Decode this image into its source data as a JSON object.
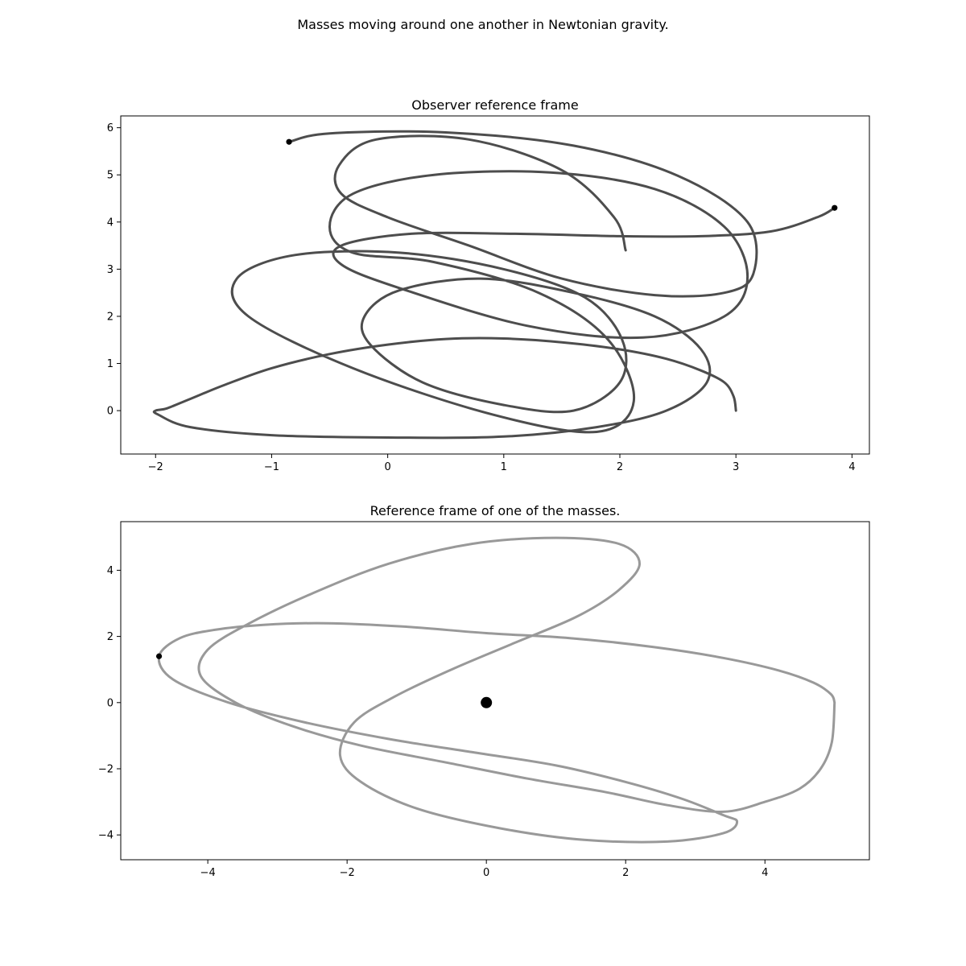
{
  "suptitle": "Masses moving around one another in Newtonian gravity.",
  "colors": {
    "observer_track": "#4d4d4d",
    "relative_track": "#999999",
    "marker": "#000000",
    "axes": "#000000"
  },
  "chart_data": [
    {
      "type": "line",
      "title": "Observer reference frame",
      "xlabel": "",
      "ylabel": "",
      "xlim": [
        -2.3,
        4.15
      ],
      "ylim": [
        -0.92,
        6.25
      ],
      "xticks": [
        -2,
        -1,
        0,
        1,
        2,
        3,
        4
      ],
      "yticks": [
        0,
        1,
        2,
        3,
        4,
        5,
        6
      ],
      "grid": false,
      "series": [
        {
          "color": "#4d4d4d",
          "x": [
            3.0,
            2.98,
            2.9,
            2.7,
            2.4,
            2.0,
            1.5,
            1.0,
            0.5,
            0.0,
            -0.5,
            -1.0,
            -1.4,
            -1.7,
            -1.9,
            -2.0,
            -1.98,
            -1.7,
            -1.0,
            0.0,
            1.0,
            1.8,
            2.4,
            2.75,
            2.7,
            2.3,
            1.6,
            0.8,
            0.1,
            -0.2,
            -0.15,
            0.3,
            1.0,
            1.6,
            2.0,
            2.02,
            1.7,
            1.0,
            0.1,
            -0.8,
            -1.3,
            -1.2,
            -0.3,
            0.9,
            1.8,
            2.12,
            1.9,
            1.3,
            0.4,
            -0.3,
            -0.5,
            -0.3,
            0.4,
            1.4,
            2.3,
            2.9,
            3.1,
            2.9,
            2.2,
            1.2,
            0.1,
            -0.4,
            -0.4,
            0.2,
            1.1,
            2.0,
            2.7,
            3.3,
            3.7,
            3.85
          ],
          "y": [
            0.0,
            0.3,
            0.6,
            0.85,
            1.1,
            1.3,
            1.45,
            1.53,
            1.52,
            1.4,
            1.2,
            0.9,
            0.55,
            0.25,
            0.05,
            0.0,
            -0.08,
            -0.35,
            -0.52,
            -0.57,
            -0.55,
            -0.35,
            0.0,
            0.6,
            1.3,
            2.0,
            2.5,
            2.8,
            2.55,
            2.0,
            1.4,
            0.6,
            0.12,
            0.0,
            0.6,
            1.5,
            2.4,
            3.0,
            3.35,
            3.3,
            2.8,
            2.0,
            0.9,
            -0.08,
            -0.45,
            0.2,
            1.5,
            2.5,
            3.15,
            3.35,
            3.9,
            4.6,
            5.0,
            5.05,
            4.7,
            3.9,
            2.85,
            2.0,
            1.55,
            1.8,
            2.6,
            3.1,
            3.5,
            3.75,
            3.75,
            3.7,
            3.7,
            3.8,
            4.1,
            4.3
          ]
        },
        {
          "color": "#4d4d4d",
          "x": [
            -0.85,
            -0.5,
            0.5,
            1.6,
            2.5,
            3.1,
            3.15,
            2.9,
            2.3,
            1.5,
            0.7,
            0.0,
            -0.4,
            -0.42,
            -0.1,
            0.7,
            1.5,
            1.95,
            2.05
          ],
          "y": [
            5.7,
            5.88,
            5.9,
            5.62,
            4.98,
            4.0,
            2.9,
            2.5,
            2.45,
            2.8,
            3.5,
            4.1,
            4.6,
            5.2,
            5.75,
            5.75,
            5.1,
            4.1,
            3.4
          ]
        }
      ],
      "markers": [
        {
          "x": -0.85,
          "y": 5.7,
          "color": "#000000",
          "size": "small"
        },
        {
          "x": 3.85,
          "y": 4.3,
          "color": "#000000",
          "size": "small"
        }
      ]
    },
    {
      "type": "line",
      "title": "Reference frame of one of the masses.",
      "xlabel": "",
      "ylabel": "",
      "xlim": [
        -5.25,
        5.5
      ],
      "ylim": [
        -4.75,
        5.47
      ],
      "xticks": [
        -4,
        -2,
        0,
        2,
        4
      ],
      "yticks": [
        -4,
        -2,
        0,
        2,
        4
      ],
      "grid": false,
      "series": [
        {
          "color": "#999999",
          "x": [
            5.0,
            4.95,
            4.7,
            4.2,
            3.4,
            2.4,
            1.2,
            0.0,
            -1.2,
            -2.3,
            -3.2,
            -3.9,
            -4.4,
            -4.7,
            -4.5,
            -3.7,
            -2.6,
            -1.4,
            -0.2,
            1.0,
            2.0,
            2.8,
            3.4,
            3.6,
            3.4,
            2.6,
            1.4,
            0.2,
            -1.0,
            -1.8,
            -2.1,
            -1.9,
            -1.3,
            -0.5,
            0.4,
            1.3,
            1.9,
            2.2,
            1.9,
            1.0,
            -0.2,
            -1.4,
            -2.5,
            -3.4,
            -4.0,
            -4.1,
            -3.6,
            -2.8,
            -1.8,
            -0.6,
            0.6,
            1.7,
            2.6,
            3.4,
            4.0,
            4.5,
            4.8,
            4.96,
            5.0
          ],
          "y": [
            0.0,
            0.25,
            0.6,
            0.97,
            1.35,
            1.68,
            1.95,
            2.1,
            2.3,
            2.4,
            2.35,
            2.2,
            1.95,
            1.4,
            0.7,
            0.0,
            -0.6,
            -1.1,
            -1.5,
            -1.9,
            -2.4,
            -2.9,
            -3.4,
            -3.6,
            -3.95,
            -4.2,
            -4.15,
            -3.8,
            -3.2,
            -2.4,
            -1.6,
            -0.6,
            0.2,
            1.0,
            1.8,
            2.6,
            3.4,
            4.2,
            4.8,
            4.98,
            4.8,
            4.2,
            3.3,
            2.4,
            1.6,
            0.8,
            0.0,
            -0.7,
            -1.3,
            -1.8,
            -2.3,
            -2.7,
            -3.1,
            -3.3,
            -3.0,
            -2.6,
            -2.0,
            -1.2,
            0.0
          ]
        }
      ],
      "markers": [
        {
          "x": -4.7,
          "y": 1.4,
          "color": "#000000",
          "size": "small"
        },
        {
          "x": 0.0,
          "y": 0.0,
          "color": "#000000",
          "size": "large"
        }
      ]
    }
  ]
}
